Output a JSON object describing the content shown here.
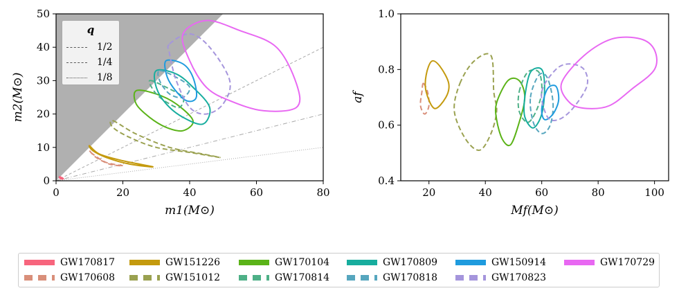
{
  "chart_data": [
    {
      "type": "line",
      "xlabel": "m1(M⊙)",
      "ylabel": "m2(M⊙)",
      "xlim": [
        0,
        80
      ],
      "ylim": [
        0,
        50
      ],
      "xticks": [
        "0",
        "20",
        "40",
        "60",
        "80"
      ],
      "yticks": [
        "0",
        "10",
        "20",
        "30",
        "40",
        "50"
      ],
      "shaded_region": "m2 > m1",
      "q_lines": [
        {
          "label": "1/2",
          "ratio": 0.5,
          "style": "dashed"
        },
        {
          "label": "1/4",
          "ratio": 0.25,
          "style": "dashdot"
        },
        {
          "label": "1/8",
          "ratio": 0.125,
          "style": "dotted"
        }
      ],
      "q_legend_title": "q",
      "series": [
        {
          "name": "GW170817",
          "style": "solid",
          "color": "#f7657d",
          "contour": [
            [
              1.0,
              1.2
            ],
            [
              1.6,
              1.0
            ],
            [
              2.2,
              0.6
            ],
            [
              1.4,
              0.6
            ],
            [
              1.0,
              1.0
            ]
          ]
        },
        {
          "name": "GW170608",
          "style": "dashed",
          "color": "#d98f7a",
          "contour": [
            [
              10,
              9
            ],
            [
              12,
              7
            ],
            [
              16,
              5
            ],
            [
              20,
              4.5
            ],
            [
              15,
              5.5
            ],
            [
              11,
              8
            ],
            [
              10,
              9
            ]
          ]
        },
        {
          "name": "GW151226",
          "style": "solid",
          "color": "#c49a0e",
          "contour": [
            [
              10,
              10.5
            ],
            [
              13,
              8
            ],
            [
              20,
              6
            ],
            [
              29,
              4.2
            ],
            [
              22,
              5
            ],
            [
              15,
              7
            ],
            [
              11,
              9
            ],
            [
              10,
              10.5
            ]
          ]
        },
        {
          "name": "GW151012",
          "style": "dashed",
          "color": "#9aa150",
          "contour": [
            [
              17,
              18
            ],
            [
              24,
              14
            ],
            [
              34,
              10
            ],
            [
              44,
              8
            ],
            [
              49,
              7
            ],
            [
              40,
              8.5
            ],
            [
              30,
              10
            ],
            [
              22,
              13
            ],
            [
              17,
              16
            ],
            [
              17,
              18
            ]
          ]
        },
        {
          "name": "GW170104",
          "style": "solid",
          "color": "#5bb318",
          "contour": [
            [
              24,
              27
            ],
            [
              30,
              26
            ],
            [
              36,
              23
            ],
            [
              41,
              18
            ],
            [
              38,
              15
            ],
            [
              33,
              16
            ],
            [
              28,
              19
            ],
            [
              24,
              23
            ],
            [
              24,
              27
            ]
          ]
        },
        {
          "name": "GW170814",
          "style": "dashed",
          "color": "#4eb087",
          "contour": [
            [
              28,
              30
            ],
            [
              33,
              28
            ],
            [
              38,
              25
            ],
            [
              37,
              22
            ],
            [
              34,
              23
            ],
            [
              30,
              26
            ],
            [
              28,
              30
            ]
          ]
        },
        {
          "name": "GW170809",
          "style": "solid",
          "color": "#17ad9e",
          "contour": [
            [
              30,
              33
            ],
            [
              36,
              32
            ],
            [
              41,
              28
            ],
            [
              46,
              22
            ],
            [
              44,
              17
            ],
            [
              38,
              19
            ],
            [
              33,
              23
            ],
            [
              30,
              28
            ],
            [
              30,
              33
            ]
          ]
        },
        {
          "name": "GW170818",
          "style": "dashed",
          "color": "#56a6be",
          "contour": [
            [
              31,
              33
            ],
            [
              36,
              31
            ],
            [
              40,
              28
            ],
            [
              38,
              25
            ],
            [
              34,
              26
            ],
            [
              31,
              30
            ],
            [
              31,
              33
            ]
          ]
        },
        {
          "name": "GW150914",
          "style": "solid",
          "color": "#1f9bde",
          "contour": [
            [
              33,
              36
            ],
            [
              38,
              35
            ],
            [
              41,
              31
            ],
            [
              42,
              25
            ],
            [
              39,
              24
            ],
            [
              35,
              28
            ],
            [
              33,
              32
            ],
            [
              33,
              36
            ]
          ]
        },
        {
          "name": "GW170823",
          "style": "dashed",
          "color": "#a595dc",
          "contour": [
            [
              34,
              41
            ],
            [
              40,
              44
            ],
            [
              46,
              40
            ],
            [
              52,
              30
            ],
            [
              50,
              23
            ],
            [
              45,
              20
            ],
            [
              40,
              22
            ],
            [
              36,
              30
            ],
            [
              34,
              38
            ],
            [
              34,
              41
            ]
          ]
        },
        {
          "name": "GW170729",
          "style": "solid",
          "color": "#e868f2",
          "contour": [
            [
              38,
              44
            ],
            [
              45,
              48
            ],
            [
              55,
              45
            ],
            [
              66,
              40
            ],
            [
              72,
              29
            ],
            [
              72,
              22
            ],
            [
              62,
              21
            ],
            [
              52,
              24
            ],
            [
              45,
              28
            ],
            [
              40,
              36
            ],
            [
              38,
              44
            ]
          ]
        }
      ]
    },
    {
      "type": "line",
      "xlabel": "Mf(M⊙)",
      "ylabel": "af",
      "xlim": [
        10,
        105
      ],
      "ylim": [
        0.4,
        1.0
      ],
      "xticks": [
        "20",
        "40",
        "60",
        "80",
        "100"
      ],
      "yticks": [
        "0.4",
        "0.6",
        "0.8",
        "1.0"
      ],
      "series": [
        {
          "name": "GW170608",
          "style": "dashed",
          "color": "#d98f7a",
          "contour": [
            [
              18,
              0.75
            ],
            [
              19.5,
              0.72
            ],
            [
              20,
              0.67
            ],
            [
              18.5,
              0.64
            ],
            [
              17,
              0.67
            ],
            [
              17.5,
              0.72
            ],
            [
              18,
              0.75
            ]
          ]
        },
        {
          "name": "GW151226",
          "style": "solid",
          "color": "#c49a0e",
          "contour": [
            [
              19,
              0.78
            ],
            [
              21,
              0.83
            ],
            [
              24,
              0.81
            ],
            [
              27,
              0.75
            ],
            [
              26,
              0.7
            ],
            [
              22,
              0.66
            ],
            [
              19,
              0.72
            ],
            [
              19,
              0.78
            ]
          ]
        },
        {
          "name": "GW151012",
          "style": "dashed",
          "color": "#9aa150",
          "contour": [
            [
              31,
              0.75
            ],
            [
              36,
              0.83
            ],
            [
              42,
              0.85
            ],
            [
              43,
              0.72
            ],
            [
              44,
              0.65
            ],
            [
              42,
              0.57
            ],
            [
              38,
              0.51
            ],
            [
              33,
              0.55
            ],
            [
              29,
              0.65
            ],
            [
              31,
              0.75
            ]
          ]
        },
        {
          "name": "GW170104",
          "style": "solid",
          "color": "#5bb318",
          "contour": [
            [
              44,
              0.68
            ],
            [
              48,
              0.76
            ],
            [
              52,
              0.76
            ],
            [
              54,
              0.7
            ],
            [
              52,
              0.61
            ],
            [
              49,
              0.53
            ],
            [
              46,
              0.55
            ],
            [
              44,
              0.62
            ],
            [
              44,
              0.68
            ]
          ]
        },
        {
          "name": "GW170814",
          "style": "dashed",
          "color": "#4eb087",
          "contour": [
            [
              52,
              0.72
            ],
            [
              55,
              0.79
            ],
            [
              59,
              0.79
            ],
            [
              60,
              0.72
            ],
            [
              58,
              0.65
            ],
            [
              55,
              0.61
            ],
            [
              52,
              0.65
            ],
            [
              52,
              0.72
            ]
          ]
        },
        {
          "name": "GW170809",
          "style": "solid",
          "color": "#17ad9e",
          "contour": [
            [
              54,
              0.7
            ],
            [
              56,
              0.79
            ],
            [
              60,
              0.8
            ],
            [
              61,
              0.73
            ],
            [
              60,
              0.64
            ],
            [
              57,
              0.59
            ],
            [
              54,
              0.63
            ],
            [
              54,
              0.7
            ]
          ]
        },
        {
          "name": "GW170818",
          "style": "dashed",
          "color": "#56a6be",
          "contour": [
            [
              56,
              0.7
            ],
            [
              59,
              0.78
            ],
            [
              62,
              0.77
            ],
            [
              64,
              0.68
            ],
            [
              63,
              0.6
            ],
            [
              60,
              0.57
            ],
            [
              57,
              0.61
            ],
            [
              56,
              0.7
            ]
          ]
        },
        {
          "name": "GW150914",
          "style": "solid",
          "color": "#1f9bde",
          "contour": [
            [
              60,
              0.66
            ],
            [
              62,
              0.73
            ],
            [
              65,
              0.74
            ],
            [
              66,
              0.69
            ],
            [
              64,
              0.64
            ],
            [
              61,
              0.62
            ],
            [
              60,
              0.66
            ]
          ]
        },
        {
          "name": "GW170823",
          "style": "dashed",
          "color": "#a595dc",
          "contour": [
            [
              60,
              0.72
            ],
            [
              65,
              0.8
            ],
            [
              70,
              0.82
            ],
            [
              75,
              0.8
            ],
            [
              76,
              0.74
            ],
            [
              71,
              0.66
            ],
            [
              66,
              0.62
            ],
            [
              62,
              0.63
            ],
            [
              60,
              0.72
            ]
          ]
        },
        {
          "name": "GW170729",
          "style": "solid",
          "color": "#e868f2",
          "contour": [
            [
              67,
              0.75
            ],
            [
              75,
              0.85
            ],
            [
              85,
              0.91
            ],
            [
              95,
              0.91
            ],
            [
              100,
              0.87
            ],
            [
              100,
              0.8
            ],
            [
              92,
              0.73
            ],
            [
              84,
              0.67
            ],
            [
              76,
              0.66
            ],
            [
              70,
              0.68
            ],
            [
              67,
              0.75
            ]
          ]
        }
      ]
    }
  ],
  "legend": [
    {
      "name": "GW170817",
      "color": "#f7657d",
      "style": "solid"
    },
    {
      "name": "GW151226",
      "color": "#c49a0e",
      "style": "solid"
    },
    {
      "name": "GW170104",
      "color": "#5bb318",
      "style": "solid"
    },
    {
      "name": "GW170809",
      "color": "#17ad9e",
      "style": "solid"
    },
    {
      "name": "GW150914",
      "color": "#1f9bde",
      "style": "solid"
    },
    {
      "name": "GW170729",
      "color": "#e868f2",
      "style": "solid"
    },
    {
      "name": "GW170608",
      "color": "#d98f7a",
      "style": "dashed"
    },
    {
      "name": "GW151012",
      "color": "#9aa150",
      "style": "dashed"
    },
    {
      "name": "GW170814",
      "color": "#4eb087",
      "style": "dashed"
    },
    {
      "name": "GW170818",
      "color": "#56a6be",
      "style": "dashed"
    },
    {
      "name": "GW170823",
      "color": "#a595dc",
      "style": "dashed"
    }
  ]
}
